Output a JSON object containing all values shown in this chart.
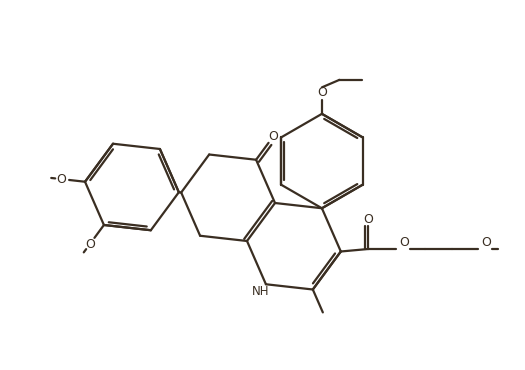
{
  "line_color": "#3a2e22",
  "bg_color": "#ffffff",
  "lw": 1.6,
  "figsize": [
    5.25,
    3.7
  ],
  "dpi": 100,
  "xlim": [
    0,
    10.5
  ],
  "ylim": [
    0,
    7.4
  ]
}
